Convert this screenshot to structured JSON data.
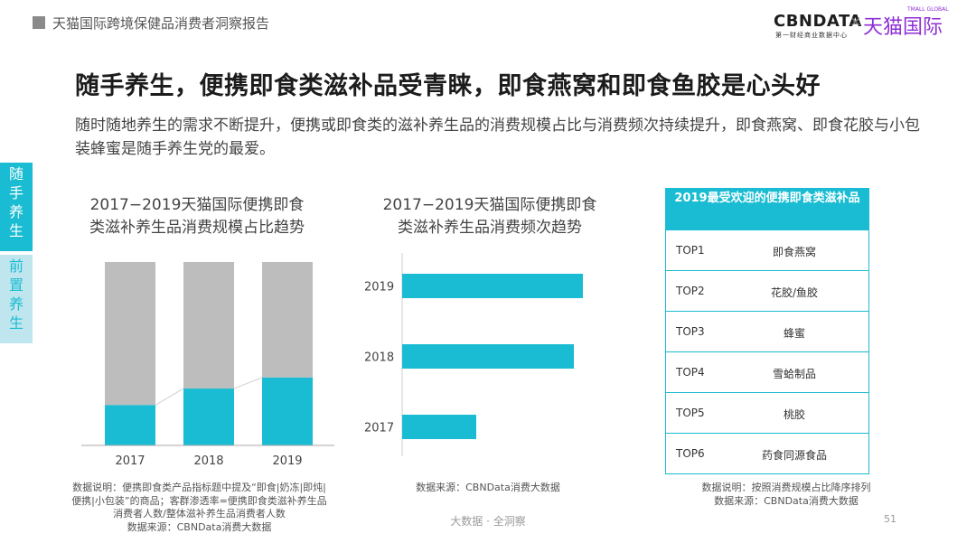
{
  "header": {
    "report_title": "天猫国际跨境保健品消费者洞察报告",
    "logo_cbndata": "CBNDATA",
    "logo_cbndata_sub": "第一财经商业数据中心",
    "logo_x": "×",
    "logo_tmall": "天猫国际",
    "logo_tmall_sub": "TMALL GLOBAL"
  },
  "headline": "随手养生，便携即食类滋补品受青睐，即食燕窝和即食鱼胶是心头好",
  "subtext": "随时随地养生的需求不断提升，便携或即食类的滋补养生品的消费规模占比与消费频次持续提升，即食燕窝、即食花胶与小包装蜂蜜是随手养生党的最爱。",
  "side_tabs": [
    {
      "label": [
        "随",
        "手",
        "养",
        "生"
      ]
    },
    {
      "label": [
        "前",
        "置",
        "养",
        "生"
      ]
    }
  ],
  "colors": {
    "accent": "#19bcd2",
    "gray_bar": "#bdbdbd",
    "tab_light": "#bfe6ee"
  },
  "chart_data": [
    {
      "type": "bar",
      "stacked": true,
      "title_lines": [
        "2017−2019天猫国际便携即食",
        "类滋补养生品消费规模占比趋势"
      ],
      "categories": [
        "2017",
        "2018",
        "2019"
      ],
      "series": [
        {
          "values": [
            0.22,
            0.31,
            0.37
          ],
          "color": "#19bcd2"
        },
        {
          "values": [
            0.78,
            0.69,
            0.63
          ],
          "color": "#bdbdbd"
        }
      ],
      "trend_line": true,
      "ylim": [
        0,
        1
      ]
    },
    {
      "type": "bar",
      "orientation": "horizontal",
      "title_lines": [
        "2017−2019天猫国际便携即食",
        "类滋补养生品消费频次趋势"
      ],
      "categories": [
        "2019",
        "2018",
        "2017"
      ],
      "values": [
        100,
        95,
        41
      ],
      "color": "#19bcd2"
    },
    {
      "type": "table",
      "title_lines": [
        "2019最受欢迎的便携即食类滋补品"
      ],
      "rows": [
        {
          "rank": "TOP1",
          "name": "即食燕窝"
        },
        {
          "rank": "TOP2",
          "name": "花胶/鱼胶"
        },
        {
          "rank": "TOP3",
          "name": "蜂蜜"
        },
        {
          "rank": "TOP4",
          "name": "雪蛤制品"
        },
        {
          "rank": "TOP5",
          "name": "桃胶"
        },
        {
          "rank": "TOP6",
          "name": "药食同源食品"
        }
      ]
    }
  ],
  "notes": {
    "chart1": [
      "数据说明：便携即食类产品指标题中提及“即食|奶冻|即炖|",
      "便携|小包装”的商品；客群渗透率=便携即食类滋补养生品",
      "消费者人数/整体滋补养生品消费者人数",
      "数据来源：CBNData消费大数据"
    ],
    "chart2": [
      "数据来源：CBNData消费大数据"
    ],
    "chart3": [
      "数据说明：按照消费规模占比降序排列",
      "数据来源：CBNData消费大数据"
    ]
  },
  "footer": {
    "center": "大数据 · 全洞察",
    "page": "51"
  }
}
